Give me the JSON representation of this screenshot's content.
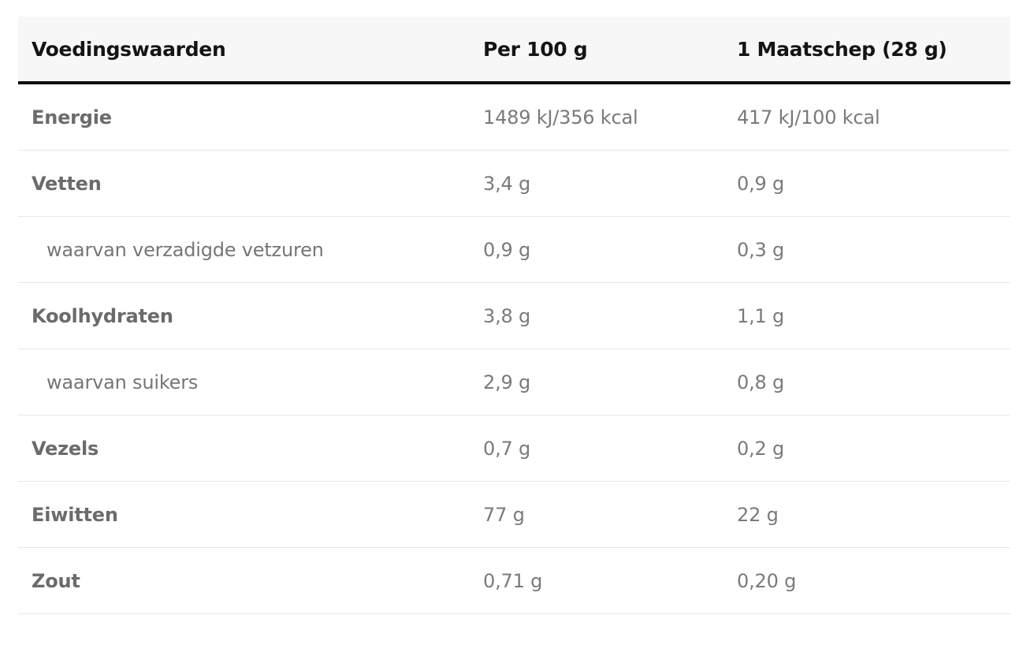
{
  "table": {
    "columns": {
      "name": "Voedingswaarden",
      "per100": "Per 100 g",
      "scoop": "1 Maatschep (28 g)"
    },
    "rows": [
      {
        "label": "Energie",
        "per100": "1489 kJ/356 kcal",
        "scoop": "417 kJ/100 kcal"
      },
      {
        "label": "Vetten",
        "per100": "3,4 g",
        "scoop": "0,9 g"
      },
      {
        "label": "waarvan verzadigde vetzuren",
        "per100": "0,9 g",
        "scoop": "0,3 g"
      },
      {
        "label": "Koolhydraten",
        "per100": "3,8 g",
        "scoop": "1,1 g"
      },
      {
        "label": "waarvan suikers",
        "per100": "2,9 g",
        "scoop": "0,8 g"
      },
      {
        "label": "Vezels",
        "per100": "0,7 g",
        "scoop": "0,2 g"
      },
      {
        "label": "Eiwitten",
        "per100": "77 g",
        "scoop": "22 g"
      },
      {
        "label": "Zout",
        "per100": "0,71 g",
        "scoop": "0,20 g"
      }
    ],
    "colors": {
      "header_bg": "#f7f7f7",
      "header_text": "#141414",
      "header_rule": "#0c0c0c",
      "label_text": "#6b6b6b",
      "value_text": "#7a7a7a",
      "divider": "#e7e7e7"
    }
  }
}
